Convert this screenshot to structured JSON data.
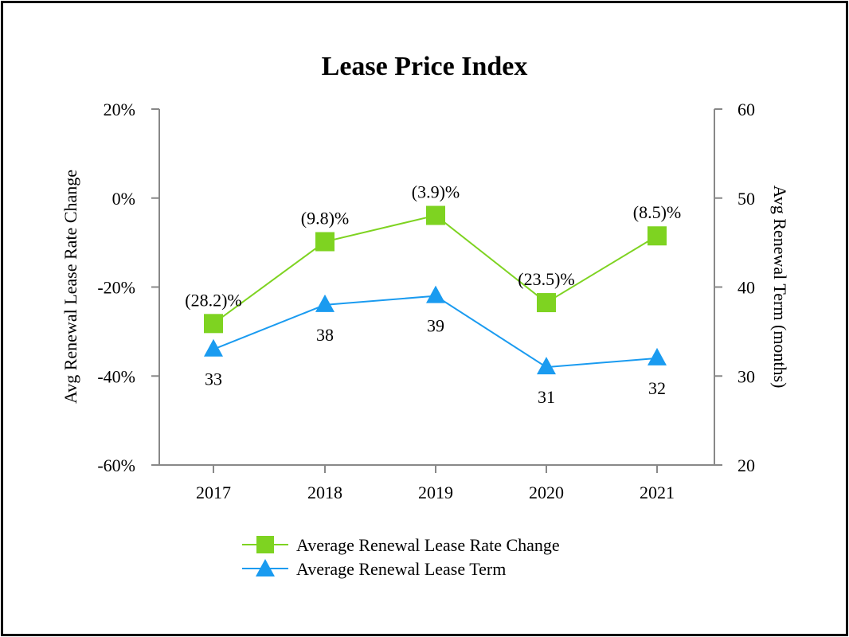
{
  "chart_data": {
    "type": "line",
    "title": "Lease Price Index",
    "categories": [
      "2017",
      "2018",
      "2019",
      "2020",
      "2021"
    ],
    "y_left": {
      "label": "Avg Renewal Lease Rate Change",
      "ylim": [
        -60,
        20
      ],
      "ticks": [
        -60,
        -40,
        -20,
        0,
        20
      ],
      "tick_labels": [
        "-60%",
        "-40%",
        "-20%",
        "0%",
        "20%"
      ]
    },
    "y_right": {
      "label": "Avg Renewal Term (months)",
      "ylim": [
        20,
        60
      ],
      "ticks": [
        20,
        30,
        40,
        50,
        60
      ],
      "tick_labels": [
        "20",
        "30",
        "40",
        "50",
        "60"
      ]
    },
    "series": [
      {
        "name": "Average Renewal Lease Rate Change",
        "axis": "left",
        "marker": "square",
        "color": "#7ED321",
        "values": [
          -28.2,
          -9.8,
          -3.9,
          -23.5,
          -8.5
        ],
        "labels": [
          "(28.2)%",
          "(9.8)%",
          "(3.9)%",
          "(23.5)%",
          "(8.5)%"
        ]
      },
      {
        "name": "Average Renewal Lease Term",
        "axis": "right",
        "marker": "triangle",
        "color": "#1A9BF0",
        "values": [
          33,
          38,
          39,
          31,
          32
        ],
        "labels": [
          "33",
          "38",
          "39",
          "31",
          "32"
        ]
      }
    ],
    "legend": "bottom-center",
    "grid": false
  }
}
